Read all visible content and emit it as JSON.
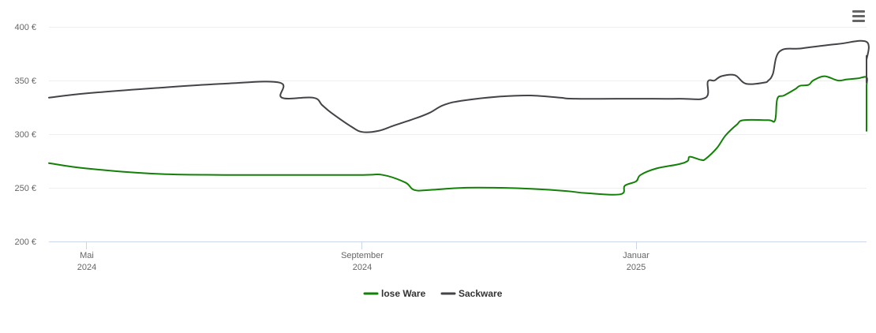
{
  "menu": {
    "icon": "hamburger-menu-icon"
  },
  "chart_data": {
    "type": "line",
    "title": "",
    "xlabel": "",
    "ylabel": "",
    "y_unit": "€",
    "ylim": [
      200,
      400
    ],
    "y_ticks": [
      "200 €",
      "250 €",
      "300 €",
      "350 €",
      "400 €"
    ],
    "x_ticks": [
      {
        "label": "Mai",
        "year": "2024",
        "date": "2024-05-01"
      },
      {
        "label": "September",
        "year": "2024",
        "date": "2024-09-01"
      },
      {
        "label": "Januar",
        "year": "2025",
        "date": "2025-01-01"
      }
    ],
    "grid": true,
    "legend_position": "bottom-center",
    "series": [
      {
        "name": "lose Ware",
        "color": "#138007",
        "points": [
          [
            "2024-04-09",
            273
          ],
          [
            "2024-05-01",
            268
          ],
          [
            "2024-06-01",
            263
          ],
          [
            "2024-07-01",
            262
          ],
          [
            "2024-08-01",
            262
          ],
          [
            "2024-09-01",
            262
          ],
          [
            "2024-09-10",
            262
          ],
          [
            "2024-09-20",
            255
          ],
          [
            "2024-09-24",
            248
          ],
          [
            "2024-10-01",
            248
          ],
          [
            "2024-10-16",
            250
          ],
          [
            "2024-11-01",
            250
          ],
          [
            "2024-11-16",
            249
          ],
          [
            "2024-12-01",
            247
          ],
          [
            "2024-12-10",
            245
          ],
          [
            "2024-12-25",
            244
          ],
          [
            "2024-12-27",
            252
          ],
          [
            "2025-01-01",
            256
          ],
          [
            "2025-01-03",
            262
          ],
          [
            "2025-01-10",
            268
          ],
          [
            "2025-01-20",
            272
          ],
          [
            "2025-01-24",
            275
          ],
          [
            "2025-01-25",
            279
          ],
          [
            "2025-01-30",
            276
          ],
          [
            "2025-02-01",
            277
          ],
          [
            "2025-02-06",
            287
          ],
          [
            "2025-02-10",
            299
          ],
          [
            "2025-02-15",
            309
          ],
          [
            "2025-02-18",
            313
          ],
          [
            "2025-03-01",
            313
          ],
          [
            "2025-03-04",
            313
          ],
          [
            "2025-03-05",
            333
          ],
          [
            "2025-03-08",
            336
          ],
          [
            "2025-03-13",
            342
          ],
          [
            "2025-03-15",
            345
          ],
          [
            "2025-03-19",
            346
          ],
          [
            "2025-03-21",
            350
          ],
          [
            "2025-03-26",
            354
          ],
          [
            "2025-04-01",
            350
          ],
          [
            "2025-04-05",
            351
          ],
          [
            "2025-04-10",
            352
          ],
          [
            "2025-04-20",
            353
          ],
          [
            "2025-04-23",
            345
          ],
          [
            "2025-04-26",
            341
          ],
          [
            "2025-05-08",
            339
          ],
          [
            "2025-05-14",
            326
          ],
          [
            "2025-05-18",
            323
          ],
          [
            "2025-05-20",
            315
          ],
          [
            "2025-05-23",
            313
          ],
          [
            "2025-05-28",
            305
          ],
          [
            "2025-06-01",
            303
          ]
        ]
      },
      {
        "name": "Sackware",
        "color": "#434348",
        "points": [
          [
            "2024-04-09",
            334
          ],
          [
            "2024-05-01",
            338
          ],
          [
            "2024-06-01",
            343
          ],
          [
            "2024-07-01",
            347
          ],
          [
            "2024-07-26",
            348
          ],
          [
            "2024-07-27",
            334
          ],
          [
            "2024-08-10",
            334
          ],
          [
            "2024-08-14",
            327
          ],
          [
            "2024-08-18",
            320
          ],
          [
            "2024-08-27",
            307
          ],
          [
            "2024-09-01",
            302
          ],
          [
            "2024-09-08",
            303
          ],
          [
            "2024-09-15",
            308
          ],
          [
            "2024-09-25",
            315
          ],
          [
            "2024-10-01",
            320
          ],
          [
            "2024-10-07",
            327
          ],
          [
            "2024-10-15",
            331
          ],
          [
            "2024-11-01",
            335
          ],
          [
            "2024-11-15",
            336
          ],
          [
            "2024-11-28",
            334
          ],
          [
            "2024-12-05",
            333
          ],
          [
            "2025-01-01",
            333
          ],
          [
            "2025-01-20",
            333
          ],
          [
            "2025-02-01",
            334
          ],
          [
            "2025-02-02",
            349
          ],
          [
            "2025-02-05",
            350
          ],
          [
            "2025-02-08",
            354
          ],
          [
            "2025-02-14",
            355
          ],
          [
            "2025-02-19",
            347
          ],
          [
            "2025-02-27",
            348
          ],
          [
            "2025-03-01",
            350
          ],
          [
            "2025-03-03",
            356
          ],
          [
            "2025-03-06",
            377
          ],
          [
            "2025-03-16",
            380
          ],
          [
            "2025-04-01",
            384
          ],
          [
            "2025-04-19",
            386
          ],
          [
            "2025-04-23",
            369
          ],
          [
            "2025-05-01",
            370
          ],
          [
            "2025-05-10",
            373
          ],
          [
            "2025-05-18",
            370
          ],
          [
            "2025-05-24",
            362
          ],
          [
            "2025-06-01",
            348
          ]
        ]
      }
    ]
  }
}
